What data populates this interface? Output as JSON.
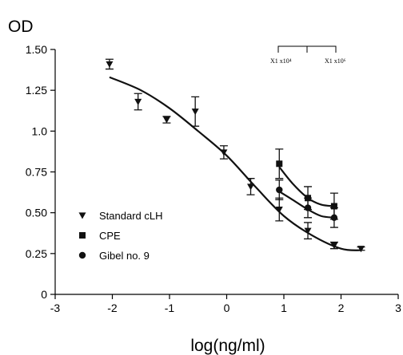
{
  "chart_data": {
    "type": "scatter",
    "title": "",
    "ylabel": "OD",
    "xlabel": "log(ng/ml)",
    "xlim": [
      -3,
      3
    ],
    "ylim": [
      0,
      1.5
    ],
    "xticks": [
      "-3",
      "-2",
      "-1",
      "0",
      "1",
      "2",
      "3"
    ],
    "yticks": [
      "0",
      "0.25",
      "0.50",
      "0.75",
      "1.0",
      "1.25",
      "1.50"
    ],
    "legend_position": "bottom-left",
    "annotations": [
      "X1 x10⁴",
      "X1 x10⁶"
    ],
    "series": [
      {
        "name": "Standard cLH",
        "marker": "triangle-down",
        "points": [
          {
            "x": -2.05,
            "y": 1.41,
            "err": 0.03
          },
          {
            "x": -1.55,
            "y": 1.18,
            "err": 0.05
          },
          {
            "x": -1.05,
            "y": 1.07,
            "err": 0.02
          },
          {
            "x": -0.55,
            "y": 1.12,
            "err": 0.09
          },
          {
            "x": -0.05,
            "y": 0.87,
            "err": 0.04
          },
          {
            "x": 0.42,
            "y": 0.66,
            "err": 0.05
          },
          {
            "x": 0.92,
            "y": 0.52,
            "err": 0.07
          },
          {
            "x": 1.42,
            "y": 0.39,
            "err": 0.05
          },
          {
            "x": 1.88,
            "y": 0.3,
            "err": 0.02
          },
          {
            "x": 2.35,
            "y": 0.28,
            "err": 0.01
          }
        ],
        "fit": [
          {
            "x": -2.05,
            "y": 1.33
          },
          {
            "x": -1.5,
            "y": 1.25
          },
          {
            "x": -1.0,
            "y": 1.14
          },
          {
            "x": -0.5,
            "y": 1.0
          },
          {
            "x": 0.0,
            "y": 0.85
          },
          {
            "x": 0.5,
            "y": 0.66
          },
          {
            "x": 1.0,
            "y": 0.48
          },
          {
            "x": 1.5,
            "y": 0.36
          },
          {
            "x": 2.0,
            "y": 0.28
          },
          {
            "x": 2.35,
            "y": 0.27
          }
        ]
      },
      {
        "name": "CPE",
        "marker": "square",
        "points": [
          {
            "x": 0.92,
            "y": 0.8,
            "err": 0.09
          },
          {
            "x": 1.42,
            "y": 0.59,
            "err": 0.07
          },
          {
            "x": 1.88,
            "y": 0.54,
            "err": 0.08
          }
        ],
        "fit": [
          {
            "x": 0.92,
            "y": 0.78
          },
          {
            "x": 1.15,
            "y": 0.68
          },
          {
            "x": 1.42,
            "y": 0.59
          },
          {
            "x": 1.65,
            "y": 0.55
          },
          {
            "x": 1.88,
            "y": 0.54
          }
        ]
      },
      {
        "name": "Gibel no. 9",
        "marker": "circle",
        "points": [
          {
            "x": 0.92,
            "y": 0.64,
            "err": 0.06
          },
          {
            "x": 1.42,
            "y": 0.53,
            "err": 0.06
          },
          {
            "x": 1.88,
            "y": 0.47,
            "err": 0.06
          }
        ],
        "fit": [
          {
            "x": 0.92,
            "y": 0.63
          },
          {
            "x": 1.15,
            "y": 0.58
          },
          {
            "x": 1.42,
            "y": 0.52
          },
          {
            "x": 1.65,
            "y": 0.48
          },
          {
            "x": 1.88,
            "y": 0.47
          }
        ]
      }
    ]
  }
}
